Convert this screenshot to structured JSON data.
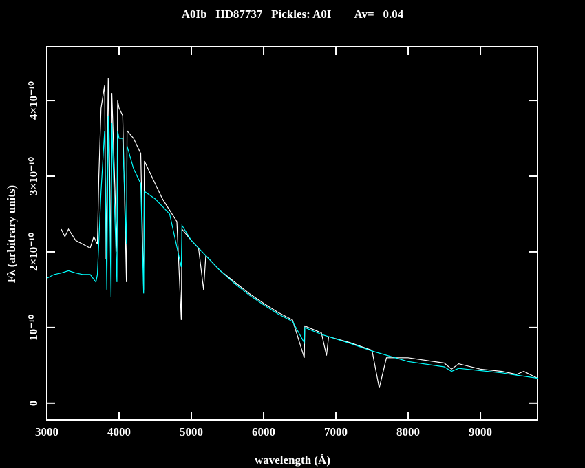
{
  "chart_data": {
    "type": "line",
    "title": "A0Ib   HD87737   Pickles: A0I        Av=   0.04",
    "x_label": "wavelength (Å)",
    "y_label": "Fλ (arbitrary units)",
    "xlim": [
      3000,
      9790
    ],
    "xticks": [
      3000,
      4000,
      5000,
      6000,
      7000,
      8000,
      9000
    ],
    "ylim": [
      -2.2e-11,
      4.71e-10
    ],
    "yticks": [
      0,
      {
        "value": 1e-10,
        "label": "10⁻¹⁰"
      },
      {
        "value": 2e-10,
        "label": "2×10⁻¹⁰"
      },
      {
        "value": 3e-10,
        "label": "3×10⁻¹⁰"
      },
      {
        "value": 4e-10,
        "label": "4×10⁻¹⁰"
      }
    ],
    "series": [
      {
        "name": "HD87737",
        "color": "#ffffff",
        "x": [
          3200,
          3250,
          3300,
          3400,
          3500,
          3600,
          3650,
          3700,
          3720,
          3750,
          3800,
          3820,
          3850,
          3889,
          3900,
          3970,
          3980,
          4000,
          4050,
          4102,
          4110,
          4200,
          4300,
          4340,
          4350,
          4400,
          4500,
          4600,
          4700,
          4800,
          4861,
          4870,
          5000,
          5100,
          5169,
          5200,
          5400,
          5600,
          5800,
          6000,
          6200,
          6400,
          6563,
          6570,
          6800,
          6870,
          6900,
          7200,
          7500,
          7600,
          7700,
          8000,
          8500,
          8600,
          8700,
          9000,
          9300,
          9500,
          9600,
          9790
        ],
        "values": [
          2.3e-10,
          2.2e-10,
          2.3e-10,
          2.15e-10,
          2.1e-10,
          2.05e-10,
          2.2e-10,
          2.1e-10,
          3e-10,
          3.9e-10,
          4.2e-10,
          1.9e-10,
          4.3e-10,
          1.8e-10,
          4.1e-10,
          2e-10,
          4e-10,
          3.9e-10,
          3.8e-10,
          1.6e-10,
          3.6e-10,
          3.5e-10,
          3.3e-10,
          1.5e-10,
          3.2e-10,
          3.1e-10,
          2.9e-10,
          2.7e-10,
          2.55e-10,
          2.4e-10,
          1.1e-10,
          2.3e-10,
          2.15e-10,
          2.05e-10,
          1.5e-10,
          1.95e-10,
          1.75e-10,
          1.6e-10,
          1.45e-10,
          1.32e-10,
          1.2e-10,
          1.1e-10,
          6e-11,
          1.02e-10,
          9.3e-11,
          6.3e-11,
          8.8e-11,
          8e-11,
          7e-11,
          2e-11,
          6e-11,
          6e-11,
          5.3e-11,
          4.5e-11,
          5.2e-11,
          4.5e-11,
          4.2e-11,
          3.8e-11,
          4.2e-11,
          3.3e-11
        ]
      },
      {
        "name": "Pickles: A0I",
        "color": "#00ffff",
        "x": [
          3000,
          3100,
          3200,
          3300,
          3400,
          3500,
          3600,
          3680,
          3700,
          3750,
          3800,
          3830,
          3850,
          3889,
          3900,
          3970,
          3980,
          4000,
          4050,
          4102,
          4110,
          4200,
          4300,
          4340,
          4350,
          4500,
          4700,
          4861,
          4870,
          5000,
          5200,
          5400,
          5600,
          5800,
          6000,
          6200,
          6400,
          6563,
          6570,
          6800,
          7200,
          7500,
          8000,
          8500,
          8600,
          8700,
          9000,
          9300,
          9500,
          9790
        ],
        "values": [
          1.65e-10,
          1.7e-10,
          1.72e-10,
          1.75e-10,
          1.72e-10,
          1.7e-10,
          1.7e-10,
          1.6e-10,
          1.7e-10,
          2.8e-10,
          3.6e-10,
          1.5e-10,
          3.8e-10,
          1.4e-10,
          3.7e-10,
          1.6e-10,
          3.6e-10,
          3.5e-10,
          3.5e-10,
          2.1e-10,
          3.4e-10,
          3.1e-10,
          2.9e-10,
          1.45e-10,
          2.8e-10,
          2.7e-10,
          2.5e-10,
          1.8e-10,
          2.35e-10,
          2.15e-10,
          1.95e-10,
          1.75e-10,
          1.58e-10,
          1.43e-10,
          1.3e-10,
          1.18e-10,
          1.08e-10,
          8e-11,
          1e-10,
          9.1e-11,
          7.9e-11,
          6.9e-11,
          5.5e-11,
          4.8e-11,
          4.2e-11,
          4.6e-11,
          4.3e-11,
          4e-11,
          3.7e-11,
          3.3e-11
        ]
      }
    ]
  }
}
